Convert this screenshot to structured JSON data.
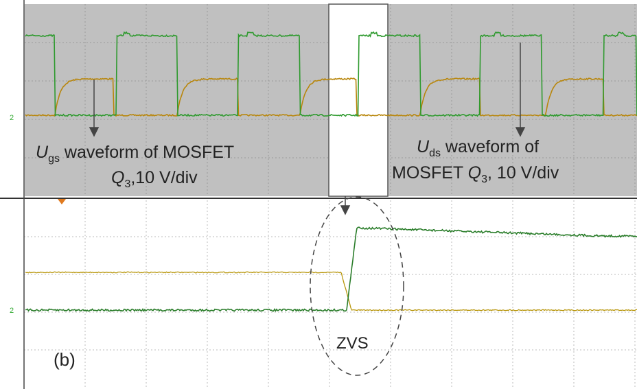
{
  "top_left_note": {
    "symbol": "U",
    "subscript": "gs",
    "line1": " waveform of MOSFET",
    "line2_symbol": "Q",
    "line2_subscript": "3",
    "line2": ",10 V/div"
  },
  "top_right_note": {
    "symbol": "U",
    "subscript": "ds",
    "line1": " waveform of",
    "line2": "MOSFET ",
    "line2_symbol": "Q",
    "line2_subscript": "3",
    "line2_rest": ", 10 V/div"
  },
  "zvs_label": "ZVS",
  "panel_label": "(b)"
}
